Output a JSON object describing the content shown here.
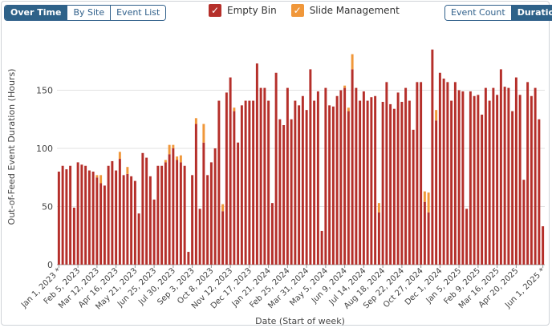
{
  "view_toggle": {
    "options": [
      "Over Time",
      "By Site",
      "Event List"
    ],
    "active": "Over Time"
  },
  "metric_toggle": {
    "options": [
      "Event Count",
      "Duration"
    ],
    "active": "Duration"
  },
  "legend": [
    {
      "label": "Empty Bin",
      "color": "#b52f2a"
    },
    {
      "label": "Slide Management",
      "color": "#f0973a"
    }
  ],
  "chart_data": {
    "type": "bar",
    "stacked": true,
    "title": "",
    "xlabel": "Date (Start of week)",
    "ylabel": "Out-of-Feed Event Duration (Hours)",
    "ylim": [
      0,
      200
    ],
    "yticks": [
      0,
      50,
      100,
      150
    ],
    "grid": true,
    "legend_position": "top-center",
    "x_tick_labels": [
      "Jan 1, 2023 *",
      "Feb 5, 2023",
      "Mar 12, 2023",
      "Apr 16, 2023",
      "May 21, 2023",
      "Jun 25, 2023",
      "Jul 30, 2023",
      "Sep 3, 2023",
      "Oct 8, 2023",
      "Nov 12, 2023",
      "Dec 17, 2023",
      "Jan 21, 2024",
      "Feb 25, 2024",
      "Mar 31, 2024",
      "May 5, 2024",
      "Jun 9, 2024",
      "Jul 14, 2024",
      "Aug 18, 2024",
      "Sep 22, 2024",
      "Oct 27, 2024",
      "Dec 1, 2024",
      "Jan 5, 2025",
      "Feb 9, 2025",
      "Mar 16, 2025",
      "Apr 20, 2025",
      "Jun 1, 2025 *"
    ],
    "x_tick_every": 5,
    "series": [
      {
        "name": "Empty Bin",
        "color": "#b52f2a",
        "values": [
          80,
          85,
          82,
          85,
          49,
          88,
          86,
          85,
          81,
          80,
          75,
          70,
          68,
          85,
          89,
          81,
          91,
          77,
          78,
          76,
          72,
          44,
          96,
          92,
          76,
          56,
          85,
          85,
          88,
          95,
          100,
          90,
          88,
          85,
          11,
          77,
          121,
          48,
          105,
          77,
          88,
          100,
          141,
          46,
          148,
          161,
          132,
          105,
          137,
          141,
          141,
          141,
          173,
          152,
          152,
          141,
          53,
          165,
          125,
          120,
          152,
          125,
          141,
          137,
          145,
          133,
          168,
          141,
          149,
          29,
          152,
          137,
          136,
          145,
          150,
          152,
          132,
          168,
          152,
          141,
          149,
          141,
          144,
          145,
          45,
          140,
          157,
          138,
          134,
          148,
          140,
          152,
          141,
          116,
          157,
          157,
          54,
          45,
          185,
          124,
          165,
          160,
          157,
          141,
          157,
          150,
          149,
          48,
          149,
          145,
          146,
          129,
          152,
          141,
          152,
          146,
          168,
          153,
          152,
          132,
          161,
          146,
          73,
          157,
          145,
          152,
          125,
          33
        ]
      },
      {
        "name": "Slide Management",
        "color": "#f0973a",
        "values": [
          0,
          0,
          0,
          0,
          0,
          0,
          0,
          0,
          0,
          0,
          2,
          7,
          0,
          0,
          0,
          0,
          6,
          0,
          6,
          0,
          0,
          0,
          0,
          0,
          0,
          0,
          0,
          0,
          2,
          8,
          3,
          3,
          6,
          0,
          0,
          0,
          5,
          0,
          16,
          0,
          0,
          0,
          0,
          6,
          0,
          0,
          3,
          0,
          0,
          0,
          0,
          0,
          0,
          0,
          0,
          0,
          0,
          0,
          0,
          0,
          0,
          0,
          0,
          0,
          0,
          0,
          0,
          0,
          0,
          0,
          0,
          0,
          0,
          0,
          0,
          2,
          3,
          13,
          0,
          0,
          0,
          0,
          0,
          0,
          8,
          0,
          0,
          0,
          0,
          0,
          0,
          0,
          0,
          0,
          0,
          0,
          9,
          17,
          0,
          9,
          0,
          0,
          0,
          0,
          0,
          0,
          0,
          0,
          0,
          0,
          0,
          0,
          0,
          0,
          0,
          0,
          0,
          0,
          0,
          0,
          0,
          0,
          0,
          0,
          0,
          0,
          0,
          0
        ]
      }
    ]
  }
}
